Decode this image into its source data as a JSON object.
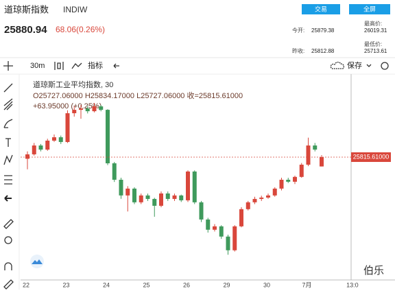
{
  "header": {
    "title": "道琼斯指数",
    "code": "INDIW",
    "buttons": [
      "交易",
      "全屏"
    ],
    "price": "25880.94",
    "change": "68.06(0.26%)",
    "stats": [
      {
        "label": "今开:",
        "value": "25879.38"
      },
      {
        "label": "最高价:",
        "value": "26019.31"
      },
      {
        "label": "昨收:",
        "value": "25812.88"
      },
      {
        "label": "最低价:",
        "value": "25713.61"
      }
    ]
  },
  "toolbar": {
    "interval": "30m",
    "indicator": "指标",
    "save": "保存"
  },
  "legend": {
    "name": "道琼斯工业平均指数, 30",
    "ohlc": "O25727.06000 H25834.17000 L25727.06000 收=25815.61000",
    "change": "+63.95000 (+0.25%)"
  },
  "watermark": "伯乐",
  "chart_data": {
    "type": "candlestick",
    "categories": [
      "22",
      null,
      null,
      null,
      null,
      null,
      "23",
      null,
      null,
      null,
      null,
      null,
      "24",
      null,
      null,
      null,
      null,
      null,
      "25",
      null,
      null,
      null,
      null,
      null,
      "26",
      null,
      null,
      null,
      null,
      null,
      "29",
      null,
      null,
      null,
      null,
      null,
      "30",
      null,
      null,
      null,
      null,
      null,
      "7月",
      null,
      null
    ],
    "x_end_label": "13:0",
    "open": [
      25800,
      25842,
      25926,
      25887,
      25972,
      26004,
      25959,
      26232,
      26264,
      26277,
      26251,
      26297,
      26264,
      25757,
      25601,
      25452,
      25517,
      25387,
      25452,
      25419,
      25354,
      25471,
      25419,
      25452,
      25406,
      25679,
      25387,
      25224,
      25127,
      25159,
      25062,
      24932,
      25159,
      25322,
      25387,
      25419,
      25432,
      25452,
      25517,
      25601,
      25582,
      25628,
      25744,
      25926,
      25727.06
    ],
    "high": [
      25870,
      25950,
      25940,
      25990,
      26030,
      26020,
      26260,
      26300,
      26310,
      26300,
      26330,
      26310,
      26270,
      25770,
      25620,
      25540,
      25530,
      25470,
      25470,
      25430,
      25490,
      25490,
      25470,
      25460,
      25690,
      25690,
      25400,
      25240,
      25180,
      25170,
      25080,
      25170,
      25340,
      25400,
      25440,
      25450,
      25470,
      25530,
      25620,
      25620,
      25640,
      25760,
      26000,
      25950,
      25834.17
    ],
    "low": [
      25700,
      25830,
      25870,
      25875,
      25960,
      25940,
      25950,
      26200,
      26180,
      26230,
      26240,
      26250,
      25740,
      25580,
      25420,
      25300,
      25370,
      25370,
      25400,
      25250,
      25340,
      25400,
      25400,
      25390,
      25390,
      25370,
      25200,
      25100,
      25110,
      25040,
      24890,
      24920,
      25150,
      25310,
      25370,
      25400,
      25420,
      25440,
      25500,
      25570,
      25560,
      25620,
      25730,
      25870,
      25727.06
    ],
    "close": [
      25842,
      25926,
      25887,
      25972,
      26004,
      25959,
      26232,
      26264,
      26277,
      26251,
      26297,
      26264,
      25757,
      25601,
      25452,
      25517,
      25387,
      25452,
      25419,
      25354,
      25471,
      25419,
      25452,
      25406,
      25679,
      25387,
      25224,
      25127,
      25159,
      25062,
      24932,
      25159,
      25322,
      25387,
      25419,
      25432,
      25452,
      25517,
      25601,
      25582,
      25628,
      25744,
      25926,
      25887,
      25815.61
    ],
    "last_price_label": "25815.61000",
    "up_color": "#d9473b",
    "down_color": "#3f9a5c",
    "ylim": [
      24670,
      26590
    ]
  }
}
